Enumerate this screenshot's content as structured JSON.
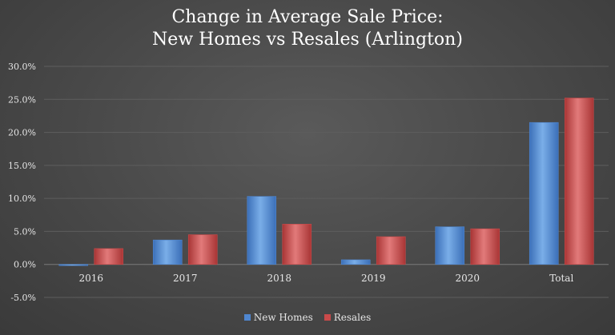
{
  "chart_data": {
    "type": "bar",
    "title": "Change in Average Sale Price:",
    "subtitle": "New Homes vs Resales (Arlington)",
    "categories": [
      "2016",
      "2017",
      "2018",
      "2019",
      "2020",
      "Total"
    ],
    "series": [
      {
        "name": "New Homes",
        "color": "#4f86cf",
        "values": [
          0.0,
          3.7,
          10.3,
          0.7,
          5.7,
          21.5
        ]
      },
      {
        "name": "Resales",
        "color": "#c94a4a",
        "values": [
          2.4,
          4.5,
          6.1,
          4.2,
          5.4,
          25.2
        ]
      }
    ],
    "ylim": [
      -5,
      30
    ],
    "yticks": [
      "30.0%",
      "25.0%",
      "20.0%",
      "15.0%",
      "10.0%",
      "5.0%",
      "0.0%",
      "-5.0%"
    ],
    "ytick_values": [
      30,
      25,
      20,
      15,
      10,
      5,
      0,
      -5
    ],
    "grid": true,
    "legend_position": "bottom"
  }
}
